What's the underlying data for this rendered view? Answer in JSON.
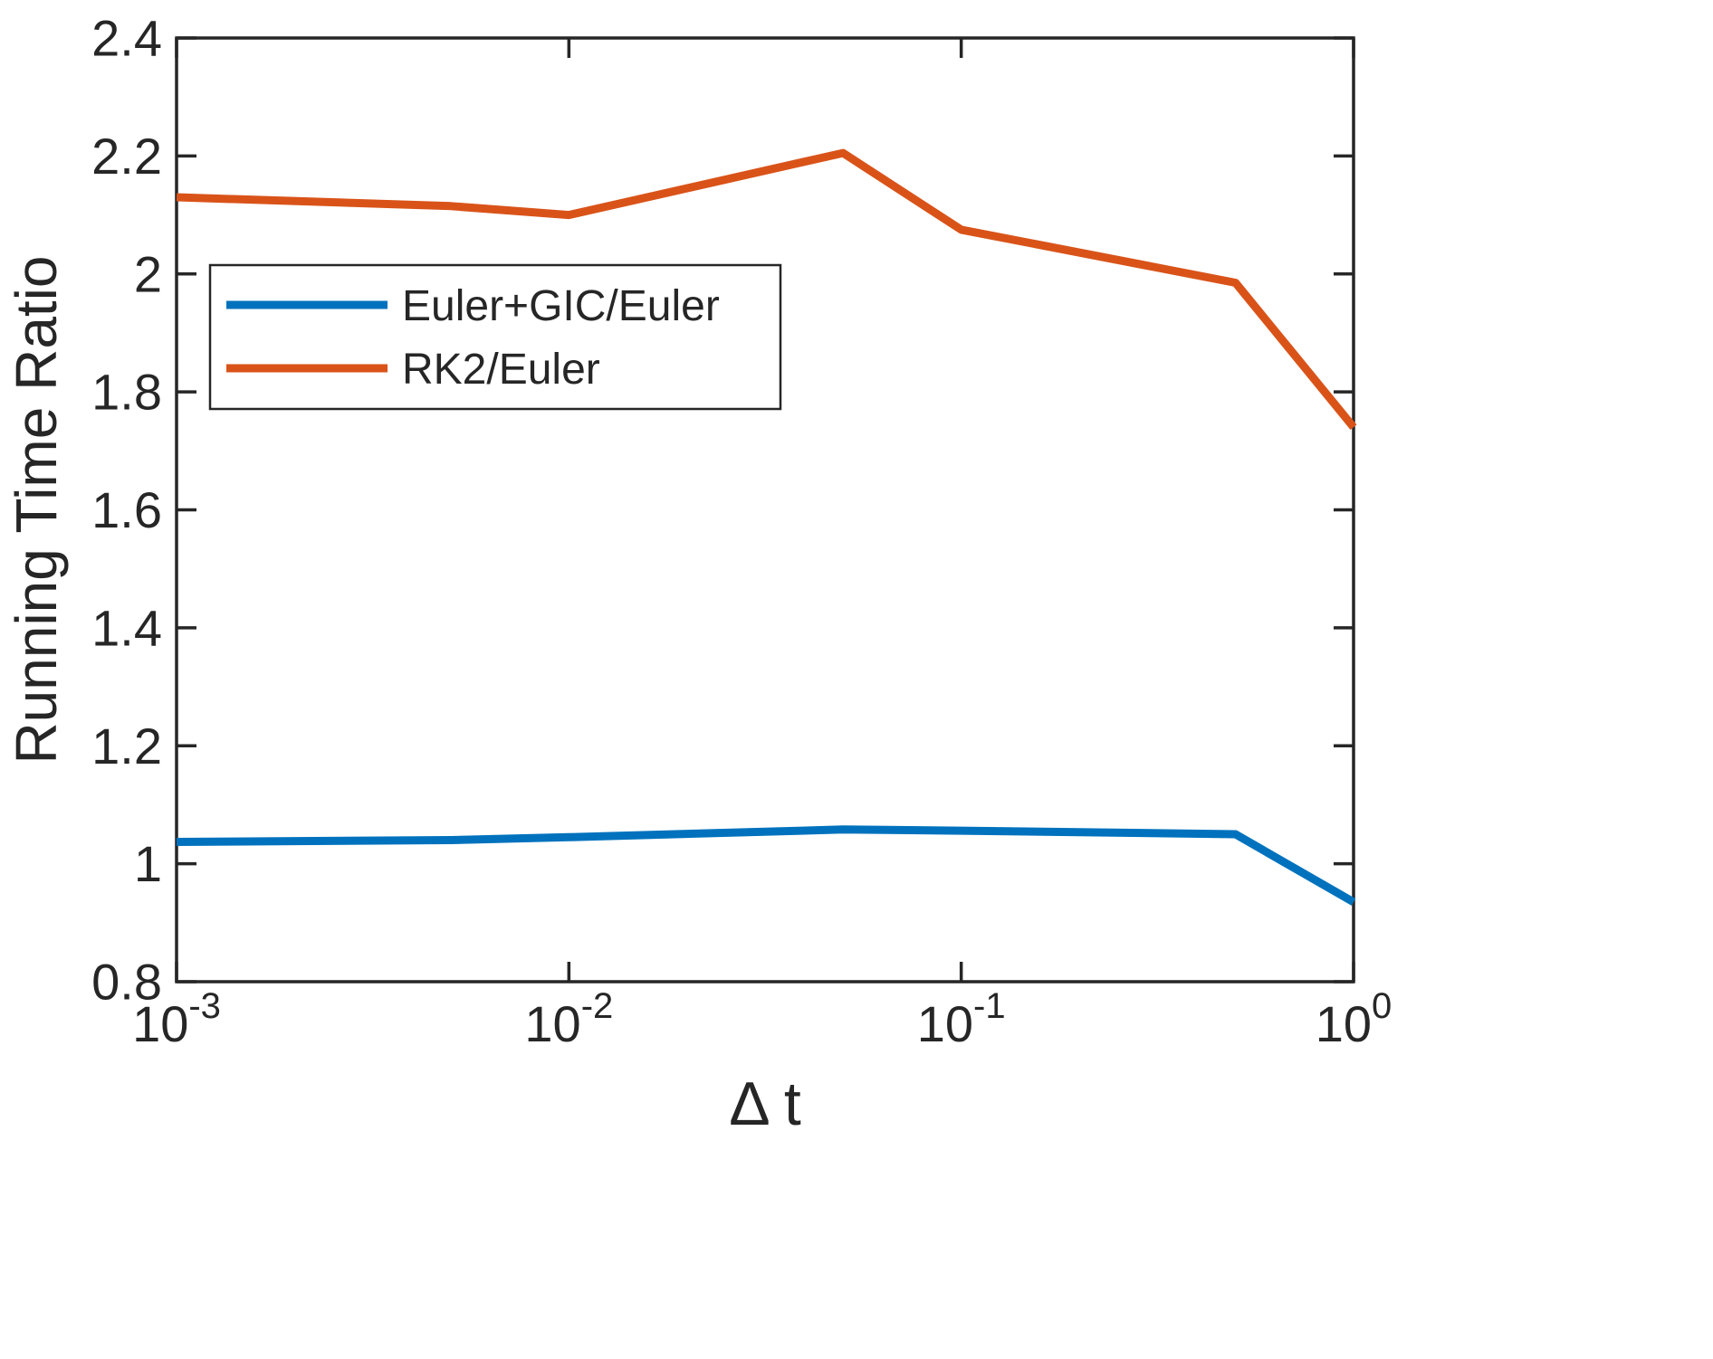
{
  "figure": {
    "background": "#ffffff",
    "axis_color": "#262626",
    "text_color": "#262626"
  },
  "chart_data": {
    "type": "line",
    "title": "",
    "xlabel": "Δ t",
    "ylabel": "Running Time Ratio",
    "x_scale": "log",
    "xlim": [
      0.001,
      1
    ],
    "ylim": [
      0.8,
      2.4
    ],
    "grid": false,
    "legend_position": "upper-left-inside",
    "x_ticks": [
      {
        "label": "10",
        "exp": "-3",
        "value": 0.001
      },
      {
        "label": "10",
        "exp": "-2",
        "value": 0.01
      },
      {
        "label": "10",
        "exp": "-1",
        "value": 0.1
      },
      {
        "label": "10",
        "exp": "0",
        "value": 1
      }
    ],
    "y_ticks": [
      {
        "label": "0.8",
        "value": 0.8
      },
      {
        "label": "1",
        "value": 1.0
      },
      {
        "label": "1.2",
        "value": 1.2
      },
      {
        "label": "1.4",
        "value": 1.4
      },
      {
        "label": "1.6",
        "value": 1.6
      },
      {
        "label": "1.8",
        "value": 1.8
      },
      {
        "label": "2",
        "value": 2.0
      },
      {
        "label": "2.2",
        "value": 2.2
      },
      {
        "label": "2.4",
        "value": 2.4
      }
    ],
    "series": [
      {
        "name": "Euler+GIC/Euler",
        "color": "#0072BD",
        "x": [
          0.001,
          0.005,
          0.01,
          0.05,
          0.1,
          0.5,
          1
        ],
        "y": [
          1.037,
          1.04,
          1.045,
          1.058,
          1.056,
          1.05,
          0.935
        ]
      },
      {
        "name": "RK2/Euler",
        "color": "#D95319",
        "x": [
          0.001,
          0.005,
          0.01,
          0.05,
          0.1,
          0.5,
          1
        ],
        "y": [
          2.13,
          2.115,
          2.1,
          2.205,
          2.075,
          1.985,
          1.74
        ]
      }
    ]
  }
}
